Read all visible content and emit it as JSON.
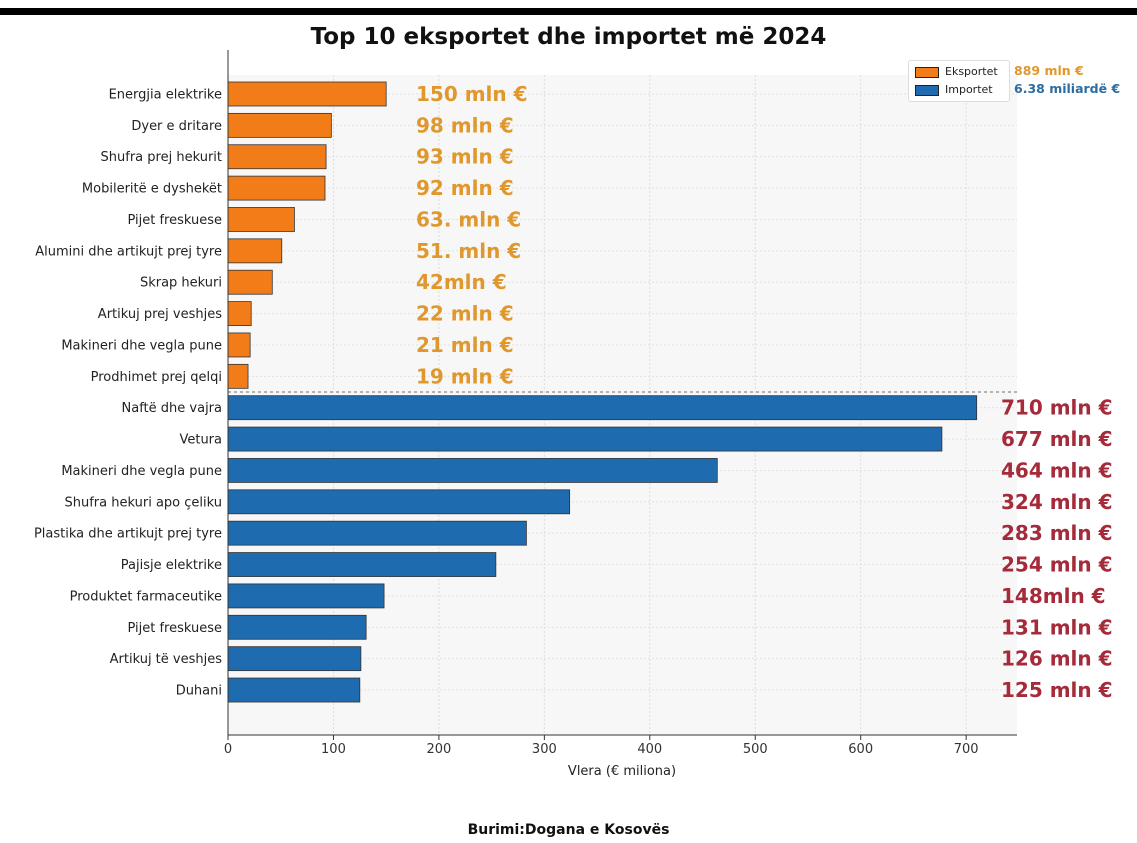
{
  "title": "Top 10 eksportet dhe importet më 2024",
  "source": "Burimi:Dogana e Kosovës",
  "colors": {
    "exports": "#f27c17",
    "imports": "#1f6bb0",
    "export_text": "#e0982d",
    "import_text": "#a52a3a",
    "import_total_text": "#2b6ca3"
  },
  "legend": [
    {
      "label": "Eksportet",
      "total": "889 mln €"
    },
    {
      "label": "Importet",
      "total": "6.38 miliardë €"
    }
  ],
  "chart_data": {
    "type": "bar",
    "orientation": "horizontal",
    "title": "Top 10 eksportet dhe importet më 2024",
    "xlabel": "Vlera (€ miliona)",
    "xlim": [
      0,
      750
    ],
    "xticks": [
      0,
      100,
      200,
      300,
      400,
      500,
      600,
      700
    ],
    "grid": true,
    "legend_position": "top-right",
    "series": [
      {
        "name": "Eksportet",
        "categories": [
          "Energjia elektrike",
          "Dyer e dritare",
          "Shufra prej hekurit",
          "Mobileritë e dyshekët",
          "Pijet freskuese",
          "Alumini dhe artikujt prej tyre",
          "Skrap hekuri",
          "Artikuj prej veshjes",
          "Makineri dhe vegla pune",
          "Prodhimet prej qelqi"
        ],
        "values": [
          150,
          98,
          93,
          92,
          63,
          51,
          42,
          22,
          21,
          19
        ],
        "labels": [
          "150 mln  €",
          "98 mln  €",
          "93 mln  €",
          "92 mln  €",
          "63. mln  €",
          "51. mln  €",
          "42mln  €",
          "22 mln  €",
          "21 mln  €",
          "19 mln  €"
        ]
      },
      {
        "name": "Importet",
        "categories": [
          "Naftë dhe vajra",
          "Vetura",
          "Makineri dhe vegla pune",
          "Shufra hekuri apo çeliku",
          "Plastika dhe artikujt prej tyre",
          "Pajisje elektrike",
          "Produktet farmaceutike",
          "Pijet freskuese",
          "Artikuj të veshjes",
          "Duhani"
        ],
        "values": [
          710,
          677,
          464,
          324,
          283,
          254,
          148,
          131,
          126,
          125
        ],
        "labels": [
          "710 mln  €",
          "677 mln  €",
          "464 mln  €",
          "324 mln  €",
          "283 mln  €",
          "254 mln  €",
          "148mln  €",
          "131 mln  €",
          "126 mln  €",
          "125 mln  €"
        ]
      }
    ]
  }
}
